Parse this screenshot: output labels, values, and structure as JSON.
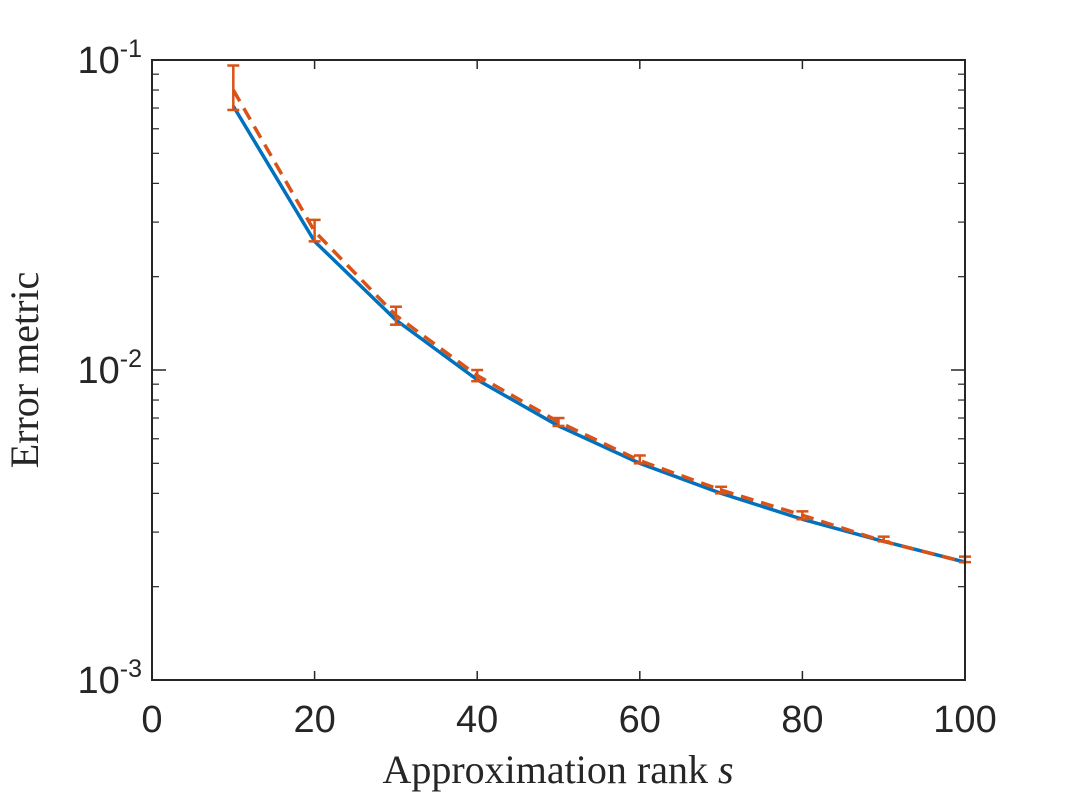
{
  "chart_data": {
    "type": "line",
    "title": "",
    "xlabel": "Approximation rank",
    "xlabel_symbol": "s",
    "ylabel": "Error metric",
    "xlim": [
      0,
      100
    ],
    "ylim": [
      0.001,
      0.1
    ],
    "yscale": "log",
    "grid": false,
    "legend": "none",
    "x_ticks": [
      0,
      20,
      40,
      60,
      80,
      100
    ],
    "x_tick_labels": [
      "0",
      "20",
      "40",
      "60",
      "80",
      "100"
    ],
    "y_ticks": [
      0.001,
      0.01,
      0.1
    ],
    "y_tick_labels": [
      {
        "base": "10",
        "exp": "-3"
      },
      {
        "base": "10",
        "exp": "-2"
      },
      {
        "base": "10",
        "exp": "-1"
      }
    ],
    "x": [
      10,
      20,
      30,
      40,
      50,
      60,
      70,
      80,
      90,
      100
    ],
    "series": [
      {
        "style": "solid",
        "color": "#0072BD",
        "values": [
          0.071,
          0.026,
          0.0145,
          0.0093,
          0.0066,
          0.005,
          0.004,
          0.0033,
          0.0028,
          0.0024
        ]
      },
      {
        "style": "dashed",
        "color": "#D95319",
        "values": [
          0.08,
          0.028,
          0.015,
          0.0096,
          0.0068,
          0.0051,
          0.0041,
          0.0034,
          0.0028,
          0.0024
        ],
        "error_low": [
          0.069,
          0.026,
          0.014,
          0.0092,
          0.0066,
          0.005,
          0.004,
          0.0033,
          0.0028,
          0.0024
        ],
        "error_high": [
          0.096,
          0.0305,
          0.016,
          0.01,
          0.007,
          0.0053,
          0.0042,
          0.0035,
          0.0029,
          0.0025
        ]
      }
    ]
  }
}
